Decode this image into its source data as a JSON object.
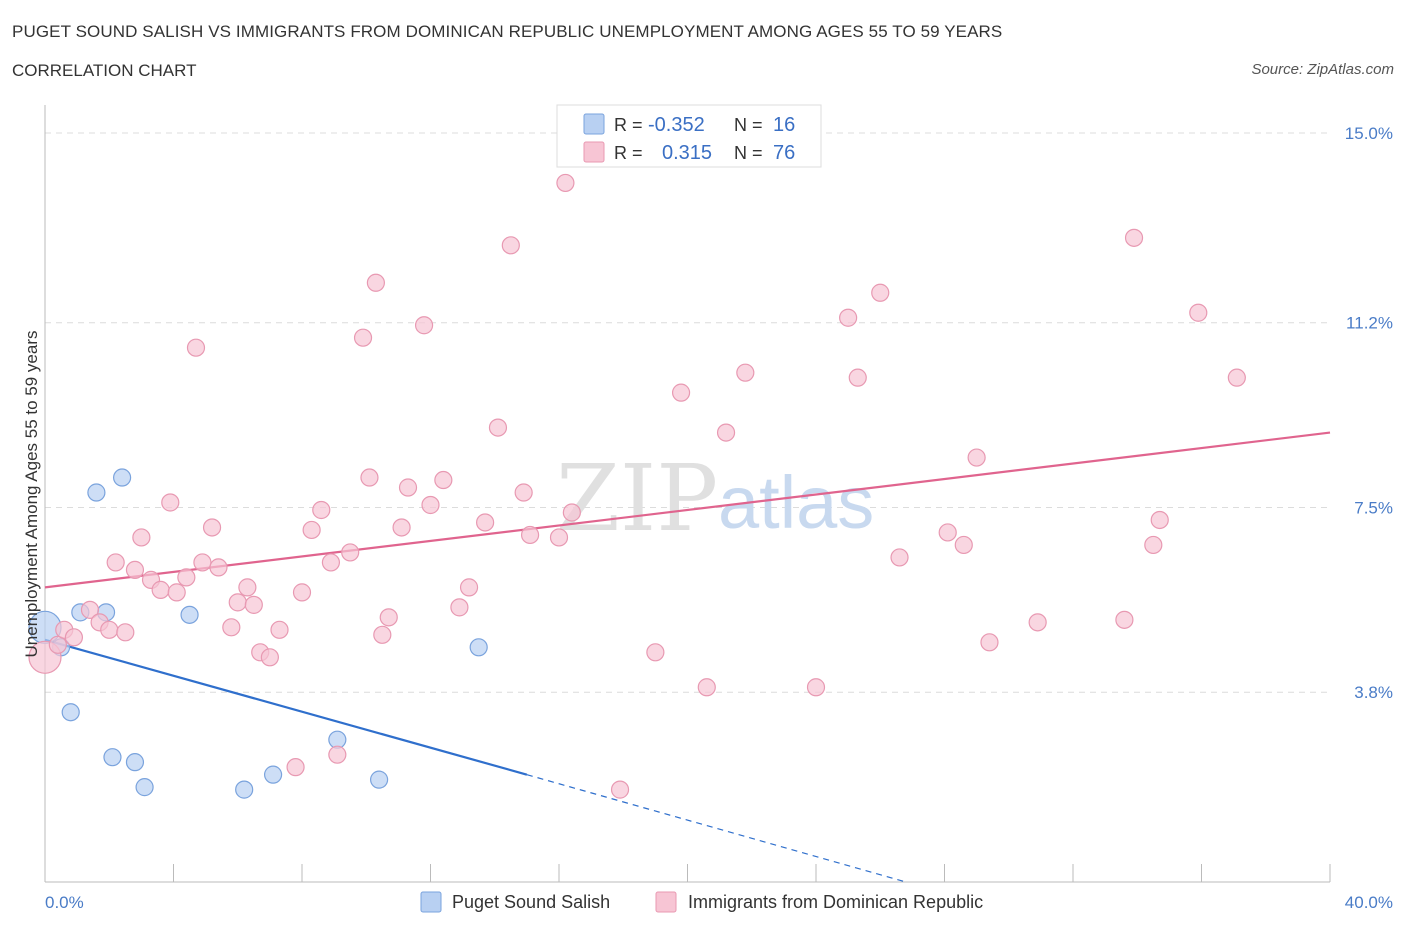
{
  "title": "PUGET SOUND SALISH VS IMMIGRANTS FROM DOMINICAN REPUBLIC UNEMPLOYMENT AMONG AGES 55 TO 59 YEARS",
  "subtitle": "CORRELATION CHART",
  "source": "Source: ZipAtlas.com",
  "watermark": {
    "zip": "ZIP",
    "atlas": "atlas"
  },
  "colors": {
    "blue_fill": "#b8d0f2",
    "blue_stroke": "#7aa3dd",
    "blue_line": "#2f6fcc",
    "pink_fill": "#f7c5d4",
    "pink_stroke": "#e899b2",
    "pink_line": "#e0648e",
    "grid": "#dcdcdc",
    "tick_text": "#4a7cc7"
  },
  "legend_box": {
    "rows": [
      {
        "r_label": "R =",
        "r_value": "-0.352",
        "n_label": "N =",
        "n_value": "16",
        "color": "blue"
      },
      {
        "r_label": "R =",
        "r_value": "0.315",
        "n_label": "N =",
        "n_value": "76",
        "color": "pink"
      }
    ]
  },
  "chart_data": {
    "type": "scatter",
    "ylabel": "Unemployment Among Ages 55 to 59 years",
    "xlim": [
      0,
      40
    ],
    "ylim": [
      0,
      15.3
    ],
    "x_tick_labels": [
      {
        "value": 0,
        "label": "0.0%"
      },
      {
        "value": 40,
        "label": "40.0%"
      }
    ],
    "y_tick_labels": [
      {
        "value": 3.8,
        "label": "3.8%"
      },
      {
        "value": 7.5,
        "label": "7.5%"
      },
      {
        "value": 11.2,
        "label": "11.2%"
      },
      {
        "value": 15.0,
        "label": "15.0%"
      }
    ],
    "grid": true,
    "legend_position": "bottom",
    "series": [
      {
        "name": "Puget Sound Salish",
        "color": "blue",
        "points": [
          [
            0.0,
            5.1,
            "lg"
          ],
          [
            0.5,
            4.7
          ],
          [
            0.8,
            3.4
          ],
          [
            1.1,
            5.4
          ],
          [
            1.6,
            7.8
          ],
          [
            1.9,
            5.4
          ],
          [
            2.1,
            2.5
          ],
          [
            2.4,
            8.1
          ],
          [
            2.8,
            2.4
          ],
          [
            3.1,
            1.9
          ],
          [
            4.5,
            5.35
          ],
          [
            6.2,
            1.85
          ],
          [
            7.1,
            2.15
          ],
          [
            9.1,
            2.85
          ],
          [
            10.4,
            2.05
          ],
          [
            13.5,
            4.7
          ]
        ],
        "trend": {
          "x0": 0,
          "y0": 4.85,
          "x1": 15,
          "y1": 2.15,
          "dash_x1": 26.8,
          "dash_y1": 0
        }
      },
      {
        "name": "Immigrants from Dominican Republic",
        "color": "pink",
        "points": [
          [
            0.0,
            4.5,
            "lg"
          ],
          [
            0.4,
            4.75
          ],
          [
            0.6,
            5.05
          ],
          [
            0.9,
            4.9
          ],
          [
            1.4,
            5.45
          ],
          [
            1.7,
            5.2
          ],
          [
            2.0,
            5.05
          ],
          [
            2.2,
            6.4
          ],
          [
            2.5,
            5.0
          ],
          [
            2.8,
            6.25
          ],
          [
            3.0,
            6.9
          ],
          [
            3.3,
            6.05
          ],
          [
            3.6,
            5.85
          ],
          [
            3.9,
            7.6
          ],
          [
            4.1,
            5.8
          ],
          [
            4.4,
            6.1
          ],
          [
            4.7,
            10.7
          ],
          [
            4.9,
            6.4
          ],
          [
            5.2,
            7.1
          ],
          [
            5.4,
            6.3
          ],
          [
            5.8,
            5.1
          ],
          [
            6.0,
            5.6
          ],
          [
            6.3,
            5.9
          ],
          [
            6.5,
            5.55
          ],
          [
            6.7,
            4.6
          ],
          [
            7.0,
            4.5
          ],
          [
            7.3,
            5.05
          ],
          [
            7.8,
            2.3
          ],
          [
            8.0,
            5.8
          ],
          [
            8.3,
            7.05
          ],
          [
            8.6,
            7.45
          ],
          [
            8.9,
            6.4
          ],
          [
            9.1,
            2.55
          ],
          [
            9.5,
            6.6
          ],
          [
            9.9,
            10.9
          ],
          [
            10.1,
            8.1
          ],
          [
            10.3,
            12.0
          ],
          [
            10.5,
            4.95
          ],
          [
            10.7,
            5.3
          ],
          [
            11.1,
            7.1
          ],
          [
            11.3,
            7.9
          ],
          [
            11.8,
            11.15
          ],
          [
            12.0,
            7.55
          ],
          [
            12.4,
            8.05
          ],
          [
            12.9,
            5.5
          ],
          [
            13.2,
            5.9
          ],
          [
            13.7,
            7.2
          ],
          [
            14.1,
            9.1
          ],
          [
            14.5,
            12.75
          ],
          [
            14.9,
            7.8
          ],
          [
            15.1,
            6.95
          ],
          [
            16.2,
            14.0
          ],
          [
            16.0,
            6.9
          ],
          [
            16.4,
            7.4
          ],
          [
            17.9,
            1.85
          ],
          [
            19.0,
            4.6
          ],
          [
            19.8,
            9.8
          ],
          [
            20.6,
            3.9
          ],
          [
            21.2,
            9.0
          ],
          [
            21.8,
            10.2
          ],
          [
            24.0,
            3.9
          ],
          [
            25.0,
            11.3
          ],
          [
            25.3,
            10.1
          ],
          [
            26.0,
            11.8
          ],
          [
            26.6,
            6.5
          ],
          [
            28.1,
            7.0
          ],
          [
            28.6,
            6.75
          ],
          [
            29.0,
            8.5
          ],
          [
            29.4,
            4.8
          ],
          [
            30.9,
            5.2
          ],
          [
            33.6,
            5.25
          ],
          [
            33.9,
            12.9
          ],
          [
            34.5,
            6.75
          ],
          [
            34.7,
            7.25
          ],
          [
            35.9,
            11.4
          ],
          [
            37.1,
            10.1
          ]
        ],
        "trend": {
          "x0": 0,
          "y0": 5.9,
          "x1": 40,
          "y1": 9.0
        }
      }
    ]
  }
}
